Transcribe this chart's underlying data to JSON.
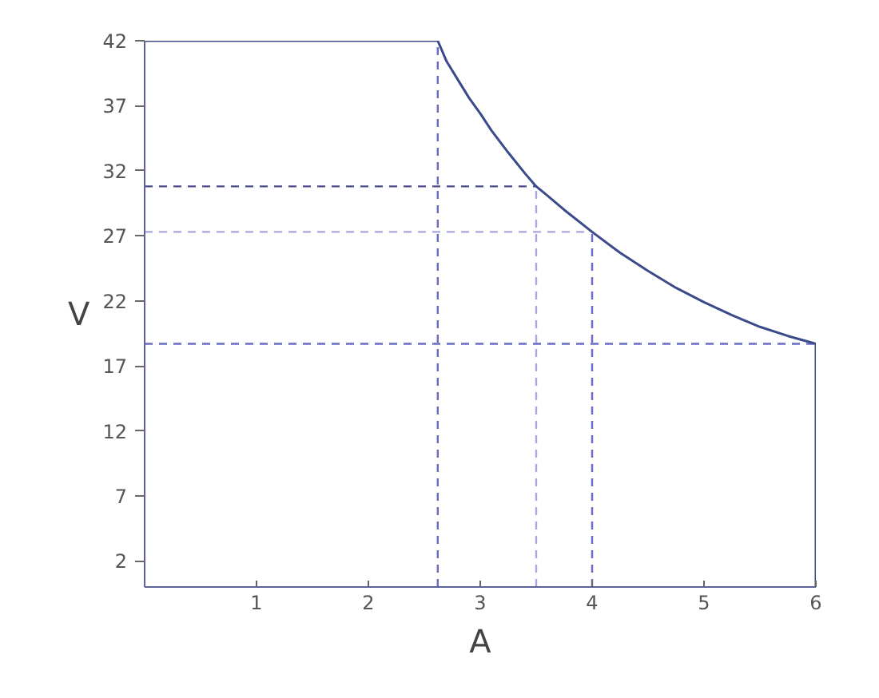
{
  "chart_data": {
    "type": "line",
    "xlabel": "A",
    "ylabel": "V",
    "xlim": [
      0,
      6
    ],
    "ylim": [
      0,
      42
    ],
    "xticks": [
      1,
      2,
      3,
      4,
      5,
      6
    ],
    "yticks": [
      2,
      7,
      12,
      17,
      22,
      27,
      32,
      37,
      42
    ],
    "series": [
      {
        "color": "#3b4a8a",
        "x": [
          0,
          2.62,
          2.7,
          2.8,
          2.9,
          3.0,
          3.1,
          3.25,
          3.4,
          3.5,
          3.6,
          3.75,
          4.0,
          4.25,
          4.5,
          4.75,
          5.0,
          5.25,
          5.5,
          5.75,
          6.0,
          6.0
        ],
        "values": [
          42,
          42,
          40.4,
          39.0,
          37.6,
          36.4,
          35.1,
          33.4,
          31.8,
          30.8,
          30.1,
          29.0,
          27.3,
          25.7,
          24.3,
          23.0,
          21.9,
          20.9,
          20.0,
          19.3,
          18.7,
          0
        ]
      }
    ],
    "ref_lines": [
      {
        "axis": "x",
        "value": 2.62,
        "color": "#6a6ac8",
        "line_style": "dashed"
      },
      {
        "axis": "x",
        "value": 3.5,
        "color": "#a8a8dc",
        "line_style": "dashed"
      },
      {
        "axis": "x",
        "value": 4.0,
        "color": "#6a6ac8",
        "line_style": "dashed"
      },
      {
        "axis": "y",
        "value": 30.8,
        "color": "#4a4a8a",
        "line_style": "dashed"
      },
      {
        "axis": "y",
        "value": 27.3,
        "color": "#a8a8dc",
        "line_style": "dashed"
      },
      {
        "axis": "y",
        "value": 18.7,
        "color": "#6a6ac8",
        "line_style": "dashed"
      }
    ],
    "grid": false
  }
}
